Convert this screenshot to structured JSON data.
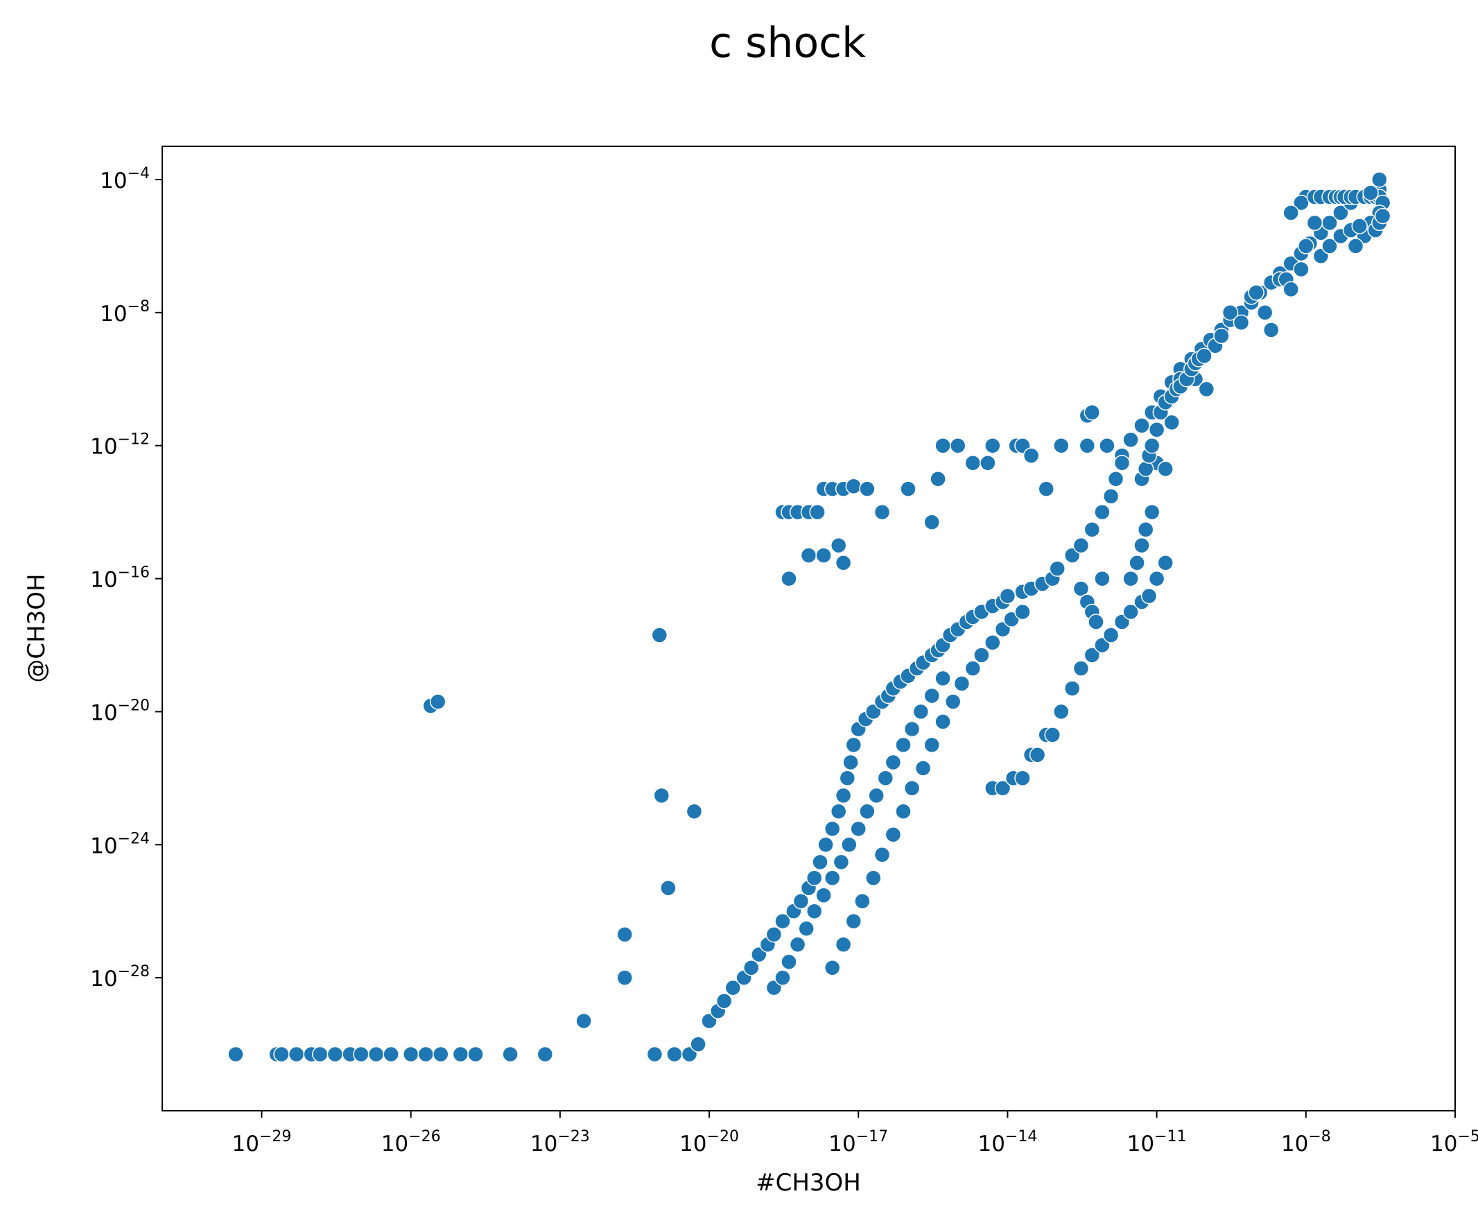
{
  "chart_data": {
    "type": "scatter",
    "title": "c shock",
    "xlabel": "#CH3OH",
    "ylabel": "@CH3OH",
    "xscale": "log",
    "yscale": "log",
    "xlim": [
      1e-31,
      1e-05
    ],
    "ylim": [
      1e-32,
      0.001
    ],
    "grid": false,
    "marker_color": "#1f77b4",
    "marker_edge_color": "#ffffff",
    "x_ticks": [
      {
        "base": "10",
        "exp": "−29",
        "value": 1e-29
      },
      {
        "base": "10",
        "exp": "−26",
        "value": 1e-26
      },
      {
        "base": "10",
        "exp": "−23",
        "value": 1e-23
      },
      {
        "base": "10",
        "exp": "−20",
        "value": 1e-20
      },
      {
        "base": "10",
        "exp": "−17",
        "value": 1e-17
      },
      {
        "base": "10",
        "exp": "−14",
        "value": 1e-14
      },
      {
        "base": "10",
        "exp": "−11",
        "value": 1e-11
      },
      {
        "base": "10",
        "exp": "−8",
        "value": 1e-08
      },
      {
        "base": "10",
        "exp": "−5",
        "value": 1e-05
      }
    ],
    "y_ticks": [
      {
        "base": "10",
        "exp": "−4",
        "value": 0.0001
      },
      {
        "base": "10",
        "exp": "−8",
        "value": 1e-08
      },
      {
        "base": "10",
        "exp": "−12",
        "value": 1e-12
      },
      {
        "base": "10",
        "exp": "−16",
        "value": 1e-16
      },
      {
        "base": "10",
        "exp": "−20",
        "value": 1e-20
      },
      {
        "base": "10",
        "exp": "−24",
        "value": 1e-24
      },
      {
        "base": "10",
        "exp": "−28",
        "value": 1e-28
      }
    ],
    "points": [
      [
        3e-30,
        5e-31
      ],
      [
        2e-29,
        5e-31
      ],
      [
        2.5e-29,
        5e-31
      ],
      [
        5e-29,
        5e-31
      ],
      [
        1e-28,
        5e-31
      ],
      [
        1.5e-28,
        5e-31
      ],
      [
        3e-28,
        5e-31
      ],
      [
        6e-28,
        5e-31
      ],
      [
        1e-27,
        5e-31
      ],
      [
        2e-27,
        5e-31
      ],
      [
        4e-27,
        5e-31
      ],
      [
        1e-26,
        5e-31
      ],
      [
        2e-26,
        5e-31
      ],
      [
        4e-26,
        5e-31
      ],
      [
        1e-25,
        5e-31
      ],
      [
        2e-25,
        5e-31
      ],
      [
        1e-24,
        5e-31
      ],
      [
        5e-24,
        5e-31
      ],
      [
        3e-23,
        5e-30
      ],
      [
        2e-22,
        1e-28
      ],
      [
        8e-22,
        5e-31
      ],
      [
        2e-21,
        5e-31
      ],
      [
        4e-21,
        5e-31
      ],
      [
        6e-21,
        1e-30
      ],
      [
        1e-20,
        5e-30
      ],
      [
        1.5e-20,
        1e-29
      ],
      [
        2e-20,
        2e-29
      ],
      [
        3e-20,
        5e-29
      ],
      [
        5e-20,
        1e-28
      ],
      [
        7e-20,
        2e-28
      ],
      [
        1e-19,
        5e-28
      ],
      [
        1.5e-19,
        1e-27
      ],
      [
        2e-19,
        2e-27
      ],
      [
        3e-19,
        5e-27
      ],
      [
        5e-19,
        1e-26
      ],
      [
        7e-19,
        2e-26
      ],
      [
        1e-18,
        5e-26
      ],
      [
        1.3e-18,
        1e-25
      ],
      [
        1.7e-18,
        3e-25
      ],
      [
        2.2e-18,
        1e-24
      ],
      [
        3e-18,
        3e-24
      ],
      [
        4e-18,
        1e-23
      ],
      [
        5e-18,
        3e-23
      ],
      [
        6e-18,
        1e-22
      ],
      [
        7e-18,
        3e-22
      ],
      [
        8e-18,
        1e-21
      ],
      [
        1e-17,
        3e-21
      ],
      [
        1.4e-17,
        6e-21
      ],
      [
        2e-17,
        1e-20
      ],
      [
        3e-17,
        2e-20
      ],
      [
        4e-17,
        3e-20
      ],
      [
        5e-17,
        5e-20
      ],
      [
        7e-17,
        8e-20
      ],
      [
        1e-16,
        1.2e-19
      ],
      [
        1.5e-16,
        2e-19
      ],
      [
        2e-16,
        3e-19
      ],
      [
        3e-16,
        5e-19
      ],
      [
        4e-16,
        7e-19
      ],
      [
        5e-16,
        1e-18
      ],
      [
        7e-16,
        2e-18
      ],
      [
        1e-15,
        3e-18
      ],
      [
        1.5e-15,
        5e-18
      ],
      [
        2e-15,
        7e-18
      ],
      [
        3e-15,
        1e-17
      ],
      [
        5e-15,
        1.5e-17
      ],
      [
        8e-15,
        2e-17
      ],
      [
        1e-14,
        3e-17
      ],
      [
        2e-14,
        4e-17
      ],
      [
        3e-14,
        5e-17
      ],
      [
        5e-14,
        7e-17
      ],
      [
        8e-14,
        1e-16
      ],
      [
        1e-13,
        2e-16
      ],
      [
        2e-13,
        5e-16
      ],
      [
        3e-13,
        1e-15
      ],
      [
        5e-13,
        3e-15
      ],
      [
        8e-13,
        1e-14
      ],
      [
        1.2e-12,
        3e-14
      ],
      [
        1.5e-12,
        1e-13
      ],
      [
        2e-12,
        5e-13
      ],
      [
        3e-12,
        1.5e-12
      ],
      [
        5e-12,
        4e-12
      ],
      [
        8e-12,
        1e-11
      ],
      [
        1.2e-11,
        3e-11
      ],
      [
        2e-11,
        8e-11
      ],
      [
        3e-11,
        2e-10
      ],
      [
        5e-11,
        4e-10
      ],
      [
        8e-11,
        8e-10
      ],
      [
        1.2e-10,
        1.5e-09
      ],
      [
        2e-10,
        3e-09
      ],
      [
        3e-10,
        6e-09
      ],
      [
        5e-10,
        1e-08
      ],
      [
        8e-10,
        2e-08
      ],
      [
        1.2e-09,
        4e-08
      ],
      [
        2e-09,
        8e-08
      ],
      [
        3e-09,
        1.5e-07
      ],
      [
        5e-09,
        3e-07
      ],
      [
        8e-09,
        6e-07
      ],
      [
        1.2e-08,
        1.2e-06
      ],
      [
        2e-08,
        2.5e-06
      ],
      [
        3e-08,
        5e-06
      ],
      [
        5e-08,
        1e-05
      ],
      [
        8e-08,
        2e-05
      ],
      [
        1.2e-07,
        3e-05
      ],
      [
        2e-07,
        4e-05
      ],
      [
        3e-07,
        5e-05
      ],
      [
        2e-19,
        5e-29
      ],
      [
        3e-19,
        1e-28
      ],
      [
        4e-19,
        3e-28
      ],
      [
        6e-19,
        1e-27
      ],
      [
        9e-19,
        3e-27
      ],
      [
        1.3e-18,
        1e-26
      ],
      [
        2e-18,
        3e-26
      ],
      [
        3e-18,
        1e-25
      ],
      [
        4.5e-18,
        3e-25
      ],
      [
        6.5e-18,
        1e-24
      ],
      [
        1e-17,
        3e-24
      ],
      [
        1.5e-17,
        1e-23
      ],
      [
        2.3e-17,
        3e-23
      ],
      [
        3.5e-17,
        1e-22
      ],
      [
        5e-17,
        3e-22
      ],
      [
        8e-17,
        1e-21
      ],
      [
        1.2e-16,
        3e-21
      ],
      [
        1.8e-16,
        1e-20
      ],
      [
        3e-16,
        3e-20
      ],
      [
        5e-16,
        1e-19
      ],
      [
        3e-18,
        2e-28
      ],
      [
        5e-18,
        1e-27
      ],
      [
        8e-18,
        5e-27
      ],
      [
        1.2e-17,
        2e-26
      ],
      [
        2e-17,
        1e-25
      ],
      [
        3e-17,
        5e-25
      ],
      [
        5e-17,
        2e-24
      ],
      [
        8e-17,
        1e-23
      ],
      [
        1.2e-16,
        5e-23
      ],
      [
        2e-16,
        2e-22
      ],
      [
        3e-16,
        1e-21
      ],
      [
        5e-16,
        5e-21
      ],
      [
        8e-16,
        2e-20
      ],
      [
        1.2e-15,
        7e-20
      ],
      [
        2e-15,
        2e-19
      ],
      [
        3e-15,
        5e-19
      ],
      [
        5e-15,
        1.2e-18
      ],
      [
        8e-15,
        3e-18
      ],
      [
        1.2e-14,
        6e-18
      ],
      [
        2e-14,
        1e-17
      ],
      [
        5e-15,
        5e-23
      ],
      [
        8e-15,
        5e-23
      ],
      [
        1.3e-14,
        1e-22
      ],
      [
        2e-14,
        1e-22
      ],
      [
        3e-14,
        5e-22
      ],
      [
        4e-14,
        5e-22
      ],
      [
        6e-14,
        2e-21
      ],
      [
        8e-14,
        2e-21
      ],
      [
        1.2e-13,
        1e-20
      ],
      [
        2e-13,
        5e-20
      ],
      [
        3e-13,
        2e-19
      ],
      [
        5e-13,
        5e-19
      ],
      [
        8e-13,
        1e-18
      ],
      [
        1.2e-12,
        2e-18
      ],
      [
        2e-12,
        5e-18
      ],
      [
        3e-12,
        1e-17
      ],
      [
        5e-12,
        2e-17
      ],
      [
        7e-12,
        3e-17
      ],
      [
        1e-11,
        1e-16
      ],
      [
        1.5e-11,
        3e-16
      ],
      [
        1e-21,
        2e-18
      ],
      [
        1.1e-21,
        3e-23
      ],
      [
        1.5e-21,
        5e-26
      ],
      [
        2e-22,
        2e-27
      ],
      [
        5e-21,
        1e-23
      ],
      [
        2.5e-26,
        1.5e-20
      ],
      [
        3.5e-26,
        2e-20
      ],
      [
        4e-18,
        1e-15
      ],
      [
        5e-18,
        3e-16
      ],
      [
        1e-18,
        5e-16
      ],
      [
        2e-18,
        5e-16
      ],
      [
        4e-19,
        1e-16
      ],
      [
        3e-19,
        1e-14
      ],
      [
        4e-19,
        1e-14
      ],
      [
        6e-19,
        1e-14
      ],
      [
        1e-18,
        1e-14
      ],
      [
        1.5e-18,
        1e-14
      ],
      [
        2e-18,
        5e-14
      ],
      [
        3e-18,
        5e-14
      ],
      [
        5e-18,
        5e-14
      ],
      [
        8e-18,
        6e-14
      ],
      [
        1.5e-17,
        5e-14
      ],
      [
        3e-17,
        1e-14
      ],
      [
        3e-16,
        5e-15
      ],
      [
        4e-16,
        1e-13
      ],
      [
        1e-16,
        5e-14
      ],
      [
        5e-16,
        1e-12
      ],
      [
        1e-15,
        1e-12
      ],
      [
        2e-15,
        3e-13
      ],
      [
        4e-15,
        3e-13
      ],
      [
        5e-15,
        1e-12
      ],
      [
        1.5e-14,
        1e-12
      ],
      [
        2e-14,
        1e-12
      ],
      [
        3e-14,
        5e-13
      ],
      [
        6e-14,
        5e-14
      ],
      [
        1.2e-13,
        1e-12
      ],
      [
        4e-13,
        8e-12
      ],
      [
        5e-13,
        1e-11
      ],
      [
        2e-12,
        3e-13
      ],
      [
        4e-13,
        1e-12
      ],
      [
        1e-12,
        1e-12
      ],
      [
        8e-12,
        1e-12
      ],
      [
        1e-11,
        3e-13
      ],
      [
        1.5e-11,
        2e-13
      ],
      [
        2e-11,
        5e-12
      ],
      [
        3e-11,
        1e-10
      ],
      [
        6e-11,
        1e-10
      ],
      [
        1e-10,
        5e-11
      ],
      [
        1.5e-10,
        1e-09
      ],
      [
        2e-10,
        2e-09
      ],
      [
        3e-10,
        1e-08
      ],
      [
        5e-10,
        5e-09
      ],
      [
        8e-10,
        3e-08
      ],
      [
        1e-09,
        4e-08
      ],
      [
        1.5e-09,
        1e-08
      ],
      [
        2e-09,
        3e-09
      ],
      [
        3e-09,
        1e-07
      ],
      [
        4e-09,
        1e-07
      ],
      [
        5e-09,
        5e-08
      ],
      [
        8e-09,
        2e-07
      ],
      [
        1e-08,
        1e-06
      ],
      [
        1.5e-08,
        5e-06
      ],
      [
        1e-08,
        3e-05
      ],
      [
        8e-09,
        2e-05
      ],
      [
        5e-09,
        1e-05
      ],
      [
        1.5e-08,
        3e-05
      ],
      [
        2e-08,
        3e-05
      ],
      [
        3e-08,
        3e-05
      ],
      [
        4e-08,
        3e-05
      ],
      [
        5e-08,
        3e-05
      ],
      [
        6e-08,
        3e-05
      ],
      [
        8e-08,
        3e-05
      ],
      [
        1e-07,
        3e-05
      ],
      [
        1.5e-07,
        3e-05
      ],
      [
        2e-07,
        3e-05
      ],
      [
        2.5e-07,
        3e-05
      ],
      [
        3e-07,
        3e-05
      ],
      [
        3.5e-07,
        2e-05
      ],
      [
        3e-07,
        1e-05
      ],
      [
        2e-07,
        5e-06
      ],
      [
        1.5e-07,
        2e-06
      ],
      [
        1e-07,
        1e-06
      ],
      [
        2.5e-07,
        3e-06
      ],
      [
        3e-07,
        5e-06
      ],
      [
        3.5e-07,
        8e-06
      ],
      [
        2e-07,
        4e-05
      ],
      [
        3e-07,
        0.0001
      ],
      [
        2e-08,
        5e-07
      ],
      [
        3e-08,
        1e-06
      ],
      [
        5e-08,
        2e-06
      ],
      [
        8e-08,
        3e-06
      ],
      [
        1.2e-07,
        4e-06
      ],
      [
        5e-12,
        1e-13
      ],
      [
        6e-12,
        2e-13
      ],
      [
        7e-12,
        5e-13
      ],
      [
        8e-12,
        1e-12
      ],
      [
        1e-11,
        3e-12
      ],
      [
        1.2e-11,
        1e-11
      ],
      [
        1.5e-11,
        2e-11
      ],
      [
        2e-11,
        3e-11
      ],
      [
        2.5e-11,
        5e-11
      ],
      [
        3e-11,
        6e-11
      ],
      [
        4e-11,
        1e-10
      ],
      [
        5e-11,
        2e-10
      ],
      [
        6e-11,
        3e-10
      ],
      [
        7e-11,
        4e-10
      ],
      [
        9e-11,
        5e-10
      ],
      [
        3e-12,
        1e-16
      ],
      [
        4e-12,
        3e-16
      ],
      [
        5e-12,
        1e-15
      ],
      [
        6e-12,
        3e-15
      ],
      [
        8e-12,
        1e-14
      ],
      [
        3e-13,
        5e-17
      ],
      [
        4e-13,
        2e-17
      ],
      [
        5e-13,
        1e-17
      ],
      [
        6e-13,
        5e-18
      ],
      [
        8e-13,
        1e-16
      ]
    ]
  }
}
